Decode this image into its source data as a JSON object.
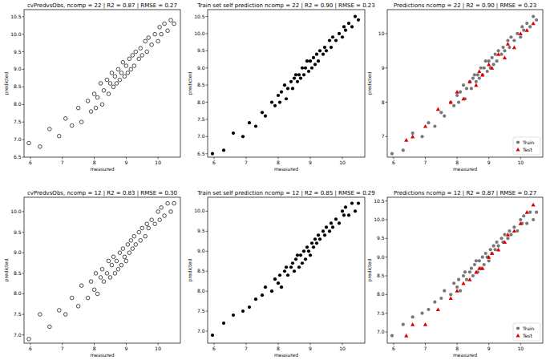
{
  "chart_data": [
    {
      "type": "scatter",
      "title": "cvPredvsObs, ncomp = 22 | R2 = 0.87 | RMSE = 0.27",
      "x_label": "measured",
      "y_label": "predicted",
      "xlim": [
        5.8,
        10.7
      ],
      "ylim": [
        6.5,
        10.7
      ],
      "xticks": [
        6,
        7,
        8,
        9,
        10
      ],
      "yticks": [
        6.5,
        {
          "value": 7,
          "label": "7.0"
        },
        7.5,
        {
          "value": 8,
          "label": "8.0"
        },
        8.5,
        {
          "value": 9,
          "label": "9.0"
        },
        9.5,
        {
          "value": 10,
          "label": "10.0"
        },
        10.5
      ],
      "series": [
        {
          "color": "#000000",
          "marker": "open-circle",
          "x": [
            5.95,
            6.3,
            6.6,
            6.9,
            7.1,
            7.3,
            7.5,
            7.6,
            7.8,
            7.9,
            8.0,
            8.05,
            8.1,
            8.2,
            8.25,
            8.3,
            8.4,
            8.45,
            8.5,
            8.55,
            8.6,
            8.65,
            8.7,
            8.75,
            8.8,
            8.85,
            8.9,
            8.95,
            9.0,
            9.05,
            9.1,
            9.15,
            9.2,
            9.25,
            9.3,
            9.4,
            9.45,
            9.5,
            9.6,
            9.65,
            9.7,
            9.8,
            9.9,
            10.0,
            10.05,
            10.1,
            10.2,
            10.3,
            10.4,
            10.5
          ],
          "values": [
            6.9,
            6.8,
            7.3,
            7.1,
            7.6,
            7.4,
            7.9,
            7.5,
            8.1,
            7.8,
            8.3,
            7.9,
            8.2,
            8.6,
            8.0,
            8.4,
            8.7,
            8.3,
            8.6,
            8.9,
            8.5,
            8.8,
            8.6,
            9.0,
            8.7,
            8.9,
            9.2,
            8.8,
            9.1,
            8.9,
            9.3,
            9.0,
            9.4,
            9.1,
            9.5,
            9.3,
            9.6,
            9.4,
            9.8,
            9.5,
            9.9,
            9.7,
            10.0,
            9.8,
            10.2,
            10.0,
            10.3,
            10.1,
            10.4,
            10.3
          ]
        }
      ]
    },
    {
      "type": "scatter",
      "title": "Train set self prediction ncomp = 22 | R2 = 0.90 | RMSE = 0.23",
      "x_label": "measured",
      "y_label": "predicted",
      "xlim": [
        5.8,
        10.7
      ],
      "ylim": [
        6.4,
        10.7
      ],
      "xticks": [
        6,
        7,
        8,
        9,
        10
      ],
      "yticks": [
        6.5,
        {
          "value": 7,
          "label": "7.0"
        },
        7.5,
        {
          "value": 8,
          "label": "8.0"
        },
        8.5,
        {
          "value": 9,
          "label": "9.0"
        },
        9.5,
        {
          "value": 10,
          "label": "10.0"
        },
        10.5
      ],
      "series": [
        {
          "color": "#000000",
          "marker": "circle",
          "x": [
            5.95,
            6.3,
            6.6,
            6.9,
            7.1,
            7.3,
            7.5,
            7.6,
            7.8,
            7.9,
            8.0,
            8.05,
            8.1,
            8.2,
            8.25,
            8.3,
            8.4,
            8.45,
            8.5,
            8.55,
            8.6,
            8.65,
            8.7,
            8.75,
            8.8,
            8.85,
            8.9,
            8.95,
            9.0,
            9.05,
            9.1,
            9.15,
            9.2,
            9.25,
            9.3,
            9.4,
            9.45,
            9.5,
            9.6,
            9.65,
            9.7,
            9.8,
            9.9,
            10.0,
            10.05,
            10.1,
            10.2,
            10.3,
            10.4,
            10.5
          ],
          "values": [
            6.5,
            6.6,
            7.1,
            7.0,
            7.4,
            7.3,
            7.7,
            7.6,
            8.0,
            7.9,
            8.2,
            8.0,
            8.3,
            8.5,
            8.1,
            8.4,
            8.6,
            8.4,
            8.7,
            8.8,
            8.6,
            8.8,
            8.7,
            9.0,
            8.8,
            9.0,
            9.2,
            8.9,
            9.2,
            9.0,
            9.3,
            9.1,
            9.4,
            9.2,
            9.5,
            9.4,
            9.6,
            9.5,
            9.8,
            9.6,
            9.9,
            9.8,
            10.0,
            9.9,
            10.2,
            10.1,
            10.3,
            10.2,
            10.5,
            10.4
          ]
        }
      ]
    },
    {
      "type": "scatter",
      "title": "Predictions ncomp = 22 | R2 = 0.90 | RMSE = 0.23",
      "x_label": "measured",
      "y_label": "predicted",
      "xlim": [
        5.8,
        10.7
      ],
      "ylim": [
        6.4,
        10.7
      ],
      "xticks": [
        6,
        7,
        8,
        9,
        10
      ],
      "yticks": [
        7,
        8,
        9,
        10
      ],
      "legend": "lower right",
      "series": [
        {
          "name": "Train",
          "color": "#555555",
          "marker": "circle",
          "x": [
            5.95,
            6.3,
            6.6,
            6.9,
            7.1,
            7.3,
            7.5,
            7.6,
            7.8,
            7.9,
            8.0,
            8.05,
            8.1,
            8.2,
            8.25,
            8.3,
            8.4,
            8.45,
            8.5,
            8.55,
            8.6,
            8.65,
            8.7,
            8.75,
            8.8,
            8.85,
            8.9,
            8.95,
            9.0,
            9.05,
            9.1,
            9.15,
            9.2,
            9.25,
            9.3,
            9.4,
            9.45,
            9.5,
            9.6,
            9.65,
            9.7,
            9.8,
            9.9,
            10.0,
            10.05,
            10.1,
            10.2,
            10.3,
            10.4,
            10.5
          ],
          "values": [
            6.5,
            6.6,
            7.1,
            7.0,
            7.4,
            7.3,
            7.7,
            7.6,
            8.0,
            7.9,
            8.2,
            8.0,
            8.3,
            8.5,
            8.1,
            8.4,
            8.6,
            8.4,
            8.7,
            8.8,
            8.6,
            8.8,
            8.7,
            9.0,
            8.8,
            9.0,
            9.2,
            8.9,
            9.2,
            9.0,
            9.3,
            9.1,
            9.4,
            9.2,
            9.5,
            9.4,
            9.6,
            9.5,
            9.8,
            9.6,
            9.9,
            9.8,
            10.0,
            9.9,
            10.2,
            10.1,
            10.3,
            10.2,
            10.5,
            10.4
          ]
        },
        {
          "name": "Test",
          "color": "#e00000",
          "marker": "triangle",
          "x": [
            6.4,
            6.6,
            7.0,
            7.4,
            7.8,
            8.0,
            8.2,
            8.4,
            8.6,
            8.7,
            8.8,
            9.0,
            9.1,
            9.3,
            9.5,
            9.6,
            9.8,
            10.0,
            10.2,
            10.4
          ],
          "values": [
            6.9,
            7.0,
            7.3,
            7.8,
            8.0,
            8.3,
            8.1,
            8.6,
            8.5,
            8.9,
            8.8,
            9.1,
            9.0,
            9.4,
            9.3,
            9.7,
            9.6,
            10.0,
            10.1,
            10.3
          ]
        }
      ]
    },
    {
      "type": "scatter",
      "title": "cvPredvsObs, ncomp = 12 | R2 = 0.83 | RMSE = 0.30",
      "x_label": "measured",
      "y_label": "predicted",
      "xlim": [
        5.8,
        10.7
      ],
      "ylim": [
        6.8,
        10.35
      ],
      "xticks": [
        6,
        7,
        8,
        9,
        10
      ],
      "yticks": [
        {
          "value": 7,
          "label": "7.0"
        },
        7.5,
        {
          "value": 8,
          "label": "8.0"
        },
        8.5,
        {
          "value": 9,
          "label": "9.0"
        },
        9.5,
        {
          "value": 10,
          "label": "10.0"
        }
      ],
      "series": [
        {
          "color": "#000000",
          "marker": "open-circle",
          "x": [
            5.95,
            6.3,
            6.6,
            6.9,
            7.1,
            7.3,
            7.5,
            7.6,
            7.8,
            7.9,
            8.0,
            8.05,
            8.1,
            8.2,
            8.25,
            8.3,
            8.4,
            8.45,
            8.5,
            8.55,
            8.6,
            8.65,
            8.7,
            8.75,
            8.8,
            8.85,
            8.9,
            8.95,
            9.0,
            9.05,
            9.1,
            9.15,
            9.2,
            9.25,
            9.3,
            9.4,
            9.45,
            9.5,
            9.6,
            9.65,
            9.7,
            9.8,
            9.9,
            10.0,
            10.05,
            10.1,
            10.2,
            10.3,
            10.4,
            10.5
          ],
          "values": [
            6.9,
            7.5,
            7.2,
            7.6,
            7.5,
            7.9,
            7.7,
            8.2,
            7.9,
            8.3,
            8.1,
            8.5,
            8.0,
            8.4,
            8.6,
            8.3,
            8.5,
            8.8,
            8.4,
            8.7,
            8.9,
            8.5,
            8.8,
            8.6,
            9.0,
            8.7,
            9.1,
            8.9,
            8.8,
            9.2,
            9.0,
            9.3,
            9.1,
            9.4,
            9.2,
            9.5,
            9.3,
            9.6,
            9.4,
            9.7,
            9.6,
            9.8,
            9.7,
            10.0,
            9.8,
            10.1,
            9.9,
            10.2,
            10.0,
            10.2
          ]
        }
      ]
    },
    {
      "type": "scatter",
      "title": "Train set self prediction ncomp = 12 | R2 = 0.85 | RMSE = 0.29",
      "x_label": "measured",
      "y_label": "predicted",
      "xlim": [
        5.8,
        10.7
      ],
      "ylim": [
        6.7,
        10.35
      ],
      "xticks": [
        6,
        7,
        8,
        9,
        10
      ],
      "yticks": [
        {
          "value": 7,
          "label": "7.0"
        },
        7.5,
        {
          "value": 8,
          "label": "8.0"
        },
        8.5,
        {
          "value": 9,
          "label": "9.0"
        },
        9.5,
        {
          "value": 10,
          "label": "10.0"
        }
      ],
      "series": [
        {
          "color": "#000000",
          "marker": "circle",
          "x": [
            5.95,
            6.3,
            6.6,
            6.9,
            7.1,
            7.3,
            7.5,
            7.6,
            7.8,
            7.9,
            8.0,
            8.05,
            8.1,
            8.2,
            8.25,
            8.3,
            8.4,
            8.45,
            8.5,
            8.55,
            8.6,
            8.65,
            8.7,
            8.75,
            8.8,
            8.85,
            8.9,
            8.95,
            9.0,
            9.05,
            9.1,
            9.15,
            9.2,
            9.25,
            9.3,
            9.4,
            9.45,
            9.5,
            9.6,
            9.65,
            9.7,
            9.8,
            9.9,
            10.0,
            10.05,
            10.1,
            10.2,
            10.3,
            10.4,
            10.5
          ],
          "values": [
            6.9,
            7.2,
            7.4,
            7.5,
            7.6,
            7.8,
            7.9,
            8.1,
            8.0,
            8.3,
            8.2,
            8.4,
            8.1,
            8.5,
            8.6,
            8.4,
            8.6,
            8.7,
            8.5,
            8.8,
            8.9,
            8.6,
            8.9,
            8.7,
            9.0,
            8.8,
            9.1,
            9.0,
            8.9,
            9.2,
            9.1,
            9.3,
            9.2,
            9.4,
            9.3,
            9.5,
            9.4,
            9.6,
            9.5,
            9.7,
            9.6,
            9.8,
            9.7,
            10.0,
            9.9,
            10.1,
            9.9,
            10.2,
            10.0,
            10.2
          ]
        }
      ]
    },
    {
      "type": "scatter",
      "title": "Predictions ncomp = 12 | R2 = 0.87 | RMSE = 0.27",
      "x_label": "measured",
      "y_label": "predicted",
      "xlim": [
        5.8,
        10.7
      ],
      "ylim": [
        6.7,
        10.6
      ],
      "xticks": [
        6,
        7,
        8,
        9,
        10
      ],
      "yticks": [
        {
          "value": 7,
          "label": "7.0"
        },
        7.5,
        {
          "value": 8,
          "label": "8.0"
        },
        8.5,
        {
          "value": 9,
          "label": "9.0"
        },
        9.5,
        {
          "value": 10,
          "label": "10.0"
        },
        10.5
      ],
      "legend": "lower right",
      "series": [
        {
          "name": "Train",
          "color": "#555555",
          "marker": "circle",
          "x": [
            5.95,
            6.3,
            6.6,
            6.9,
            7.1,
            7.3,
            7.5,
            7.6,
            7.8,
            7.9,
            8.0,
            8.05,
            8.1,
            8.2,
            8.25,
            8.3,
            8.4,
            8.45,
            8.5,
            8.55,
            8.6,
            8.65,
            8.7,
            8.75,
            8.8,
            8.85,
            8.9,
            8.95,
            9.0,
            9.05,
            9.1,
            9.15,
            9.2,
            9.25,
            9.3,
            9.4,
            9.45,
            9.5,
            9.6,
            9.65,
            9.7,
            9.8,
            9.9,
            10.0,
            10.05,
            10.1,
            10.2,
            10.3,
            10.4,
            10.5
          ],
          "values": [
            6.9,
            7.2,
            7.4,
            7.5,
            7.6,
            7.8,
            7.9,
            8.1,
            8.0,
            8.3,
            8.2,
            8.4,
            8.1,
            8.5,
            8.6,
            8.4,
            8.6,
            8.7,
            8.5,
            8.8,
            8.9,
            8.6,
            8.9,
            8.7,
            9.0,
            8.8,
            9.1,
            9.0,
            8.9,
            9.2,
            9.1,
            9.3,
            9.2,
            9.4,
            9.3,
            9.5,
            9.4,
            9.6,
            9.5,
            9.7,
            9.6,
            9.8,
            9.7,
            10.0,
            9.9,
            10.1,
            9.9,
            10.2,
            10.0,
            10.2
          ]
        },
        {
          "name": "Test",
          "color": "#e00000",
          "marker": "triangle",
          "x": [
            6.4,
            6.6,
            7.0,
            7.4,
            7.8,
            8.0,
            8.2,
            8.4,
            8.6,
            8.7,
            8.8,
            9.0,
            9.1,
            9.3,
            9.5,
            9.6,
            9.8,
            10.0,
            10.2,
            10.4
          ],
          "values": [
            6.9,
            7.2,
            7.2,
            7.6,
            7.9,
            8.1,
            8.3,
            8.4,
            8.6,
            8.7,
            8.7,
            9.0,
            9.1,
            9.2,
            9.4,
            9.6,
            9.7,
            9.9,
            10.2,
            10.4
          ]
        }
      ]
    }
  ]
}
